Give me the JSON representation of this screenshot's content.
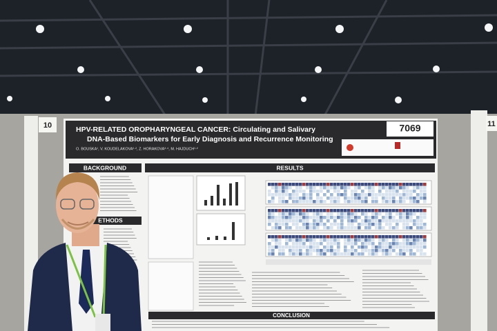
{
  "labels": {
    "board_left": "10",
    "board_right": "11",
    "poster_number": "7069"
  },
  "poster": {
    "title_line1": "HPV-RELATED OROPHARYNGEAL CANCER: Circulating and Salivary",
    "title_line2": "DNA-Based Biomarkers for Early Diagnosis and Recurrence Monitoring",
    "authors": "O. BOUSKA¹, V. KOUDELAKOVA¹·², Z. HORAKOVA³·⁴, M. HAJDUCH¹·²",
    "sections": {
      "background": "BACKGROUND",
      "methods": "ETHODS",
      "results": "RESULTS",
      "conclusion": "CONCLUSION"
    }
  }
}
